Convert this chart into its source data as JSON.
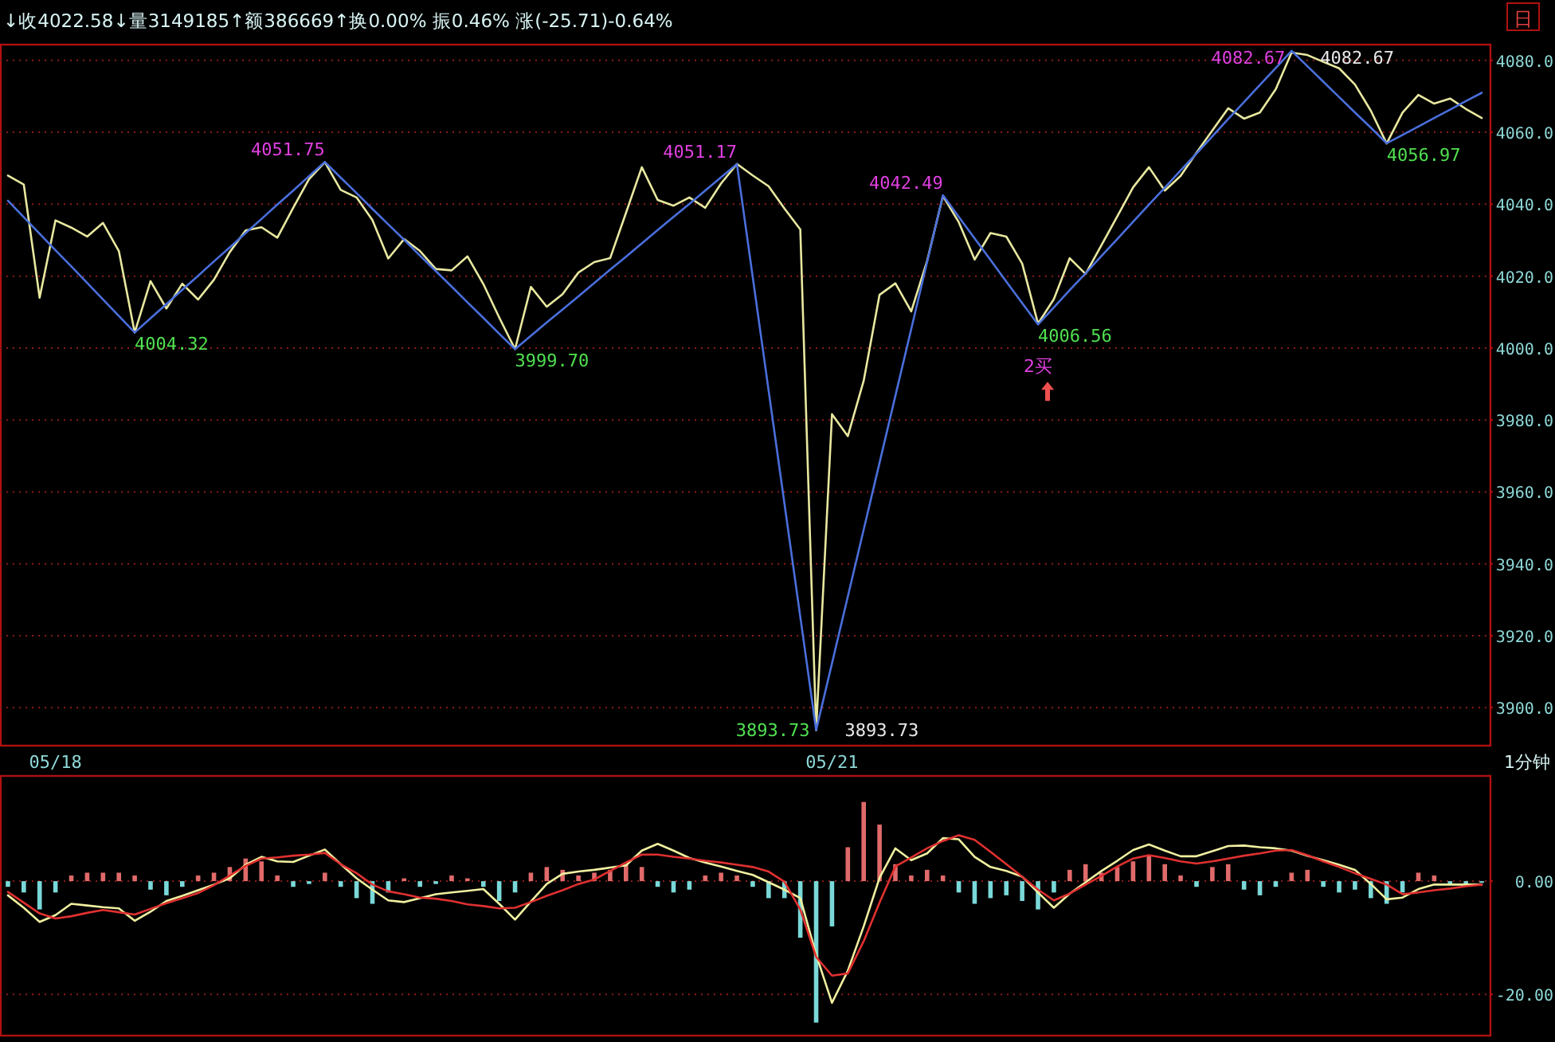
{
  "chart_data": [
    {
      "type": "line",
      "title": "↓收4022.58↓量3149185↑额386669↑换0.00% 振0.46% 涨(-25.71)-0.64%",
      "categories": [
        null,
        null,
        null,
        "05/18",
        null,
        null,
        null,
        null,
        null,
        null,
        null,
        null,
        null,
        null,
        null,
        null,
        null,
        null,
        null,
        null,
        null,
        null,
        null,
        null,
        null,
        null,
        null,
        null,
        null,
        null,
        null,
        null,
        null,
        null,
        null,
        null,
        null,
        null,
        null,
        null,
        null,
        null,
        null,
        null,
        null,
        null,
        null,
        null,
        null,
        null,
        null,
        null,
        "05/21",
        null,
        null,
        null,
        null,
        null,
        null,
        null,
        null,
        null,
        null,
        null,
        null,
        null,
        null,
        null,
        null,
        null,
        null,
        null,
        null,
        null,
        null,
        null,
        null,
        null,
        null,
        null,
        null,
        null,
        null,
        null,
        null,
        null,
        null,
        null,
        null,
        null,
        null,
        null,
        null,
        null
      ],
      "ylim": [
        3889.4,
        4084.4
      ],
      "yticks": [
        {
          "value": 3900,
          "label": "3900.0"
        },
        {
          "value": 3920,
          "label": "3920.0"
        },
        {
          "value": 3940,
          "label": "3940.0"
        },
        {
          "value": 3960,
          "label": "3960.0"
        },
        {
          "value": 3980,
          "label": "3980.0"
        },
        {
          "value": 4000,
          "label": "4000.0"
        },
        {
          "value": 4020,
          "label": "4020.0"
        },
        {
          "value": 4040,
          "label": "4040.0"
        },
        {
          "value": 4060,
          "label": "4060.0"
        },
        {
          "value": 4080,
          "label": "4080.0"
        }
      ],
      "grid": "y",
      "series": [
        {
          "color": "#e8e8a0",
          "values": [
            4048,
            4045.5,
            4014,
            4035.5,
            4033.5,
            4031,
            4034.8,
            4027,
            4004.3,
            4018.6,
            4011,
            4017.9,
            4013.5,
            4019,
            4026.7,
            4032.7,
            4033.6,
            4030.7,
            4039,
            4047,
            4051.7,
            4044,
            4041.9,
            4035.6,
            4024.9,
            4030.3,
            4027,
            4022,
            4021.6,
            4025.5,
            4017.8,
            4008.5,
            3999.7,
            4017,
            4011.5,
            4015,
            4021,
            4023.9,
            4025,
            4037.6,
            4050.3,
            4041.2,
            4039.6,
            4041.9,
            4039,
            4045.8,
            4051.2,
            4048,
            4045,
            4038.8,
            4033,
            3893.7,
            3981.6,
            3975.5,
            3990.9,
            4014.8,
            4018,
            4010.2,
            4024.2,
            4042.3,
            4035,
            4024.6,
            4032,
            4031,
            4023.5,
            4006.8,
            4013.6,
            4025,
            4020.6,
            4028.6,
            4036.6,
            4044.7,
            4050.3,
            4043.8,
            4047.9,
            4054.3,
            4060.5,
            4066.7,
            4063.8,
            4065.5,
            4072,
            4082.2,
            4081.5,
            4079.6,
            4077.8,
            4073.3,
            4066,
            4056.9,
            4065.5,
            4070.4,
            4068,
            4069.4,
            4066.5,
            4064
          ]
        },
        {
          "color": "#4a6fdc",
          "values": [
            4041,
            4036.4,
            4031.8,
            4027.2,
            4022.7,
            4018.1,
            4013.5,
            4008.9,
            4004.32,
            4008.3,
            4012.2,
            4016.2,
            4020.1,
            4024.1,
            4028,
            4032,
            4035.9,
            4039.9,
            4043.8,
            4047.8,
            4051.75,
            4047.4,
            4043.1,
            4038.7,
            4034.4,
            4030.1,
            4025.7,
            4021.4,
            4017.1,
            4012.7,
            4008.4,
            4004,
            3999.7,
            4003.4,
            4007.1,
            4010.7,
            4014.4,
            4018.1,
            4021.8,
            4025.4,
            4029.1,
            4032.8,
            4036.5,
            4040.1,
            4043.8,
            4047.5,
            4051.17,
            4019.7,
            3988.2,
            3956.7,
            3925.2,
            3893.73,
            3912.3,
            3930.9,
            3949.5,
            3968.1,
            3986.7,
            4005.3,
            4023.9,
            4042.49,
            4036.5,
            4030.5,
            4024.5,
            4018.5,
            4012.5,
            4006.56,
            4011.3,
            4016.1,
            4020.8,
            4025.6,
            4030.3,
            4035.1,
            4039.9,
            4044.6,
            4049.4,
            4054.1,
            4058.9,
            4063.7,
            4068.4,
            4073.2,
            4077.9,
            4082.67,
            4078.4,
            4074.1,
            4069.8,
            4065.5,
            4061.3,
            4056.97,
            4059.3,
            4061.6,
            4064,
            4066.3,
            4068.7,
            4071
          ]
        }
      ],
      "annotations": [
        "日",
        "1分钟",
        "4004.32",
        "4051.75",
        "3999.70",
        "4051.17",
        "3893.73",
        "4042.49",
        "4006.56",
        "4082.67",
        "4056.97",
        "3893.73",
        "4082.67",
        "2买"
      ]
    },
    {
      "type": "bar",
      "categories": [
        null,
        null,
        null,
        null,
        null,
        null,
        null,
        null,
        null,
        null,
        null,
        null,
        null,
        null,
        null,
        null,
        null,
        null,
        null,
        null,
        null,
        null,
        null,
        null,
        null,
        null,
        null,
        null,
        null,
        null,
        null,
        null,
        null,
        null,
        null,
        null,
        null,
        null,
        null,
        null,
        null,
        null,
        null,
        null,
        null,
        null,
        null,
        null,
        null,
        null,
        null,
        null,
        null,
        null,
        null,
        null,
        null,
        null,
        null,
        null,
        null,
        null,
        null,
        null,
        null,
        null,
        null,
        null,
        null,
        null,
        null,
        null,
        null,
        null,
        null,
        null,
        null,
        null,
        null,
        null,
        null,
        null,
        null,
        null,
        null,
        null,
        null,
        null,
        null,
        null,
        null,
        null,
        null,
        null
      ],
      "ylim": [
        -27.3,
        18.6
      ],
      "yticks": [
        {
          "value": 0,
          "label": "0.00"
        },
        {
          "value": -20,
          "label": "-20.00"
        }
      ],
      "grid": "y",
      "tick_labels": "y",
      "series": [
        {
          "values": [
            -1,
            -2,
            -5,
            -2,
            1,
            1.5,
            1.5,
            1.5,
            1,
            -1.5,
            -2.5,
            -1,
            1,
            1.5,
            2.5,
            4,
            3.5,
            1,
            -1,
            -0.5,
            1.5,
            -1,
            -3,
            -4,
            -2,
            0.5,
            -1,
            -0.5,
            1,
            0.5,
            -1,
            -3.5,
            -2,
            1.5,
            2.5,
            2,
            1,
            1.5,
            2,
            3,
            2.5,
            -1,
            -2,
            -1.5,
            1,
            1.5,
            1,
            -1,
            -3,
            -3,
            -10,
            -25,
            -8,
            6,
            14,
            10,
            3,
            1,
            2,
            1,
            -2,
            -4,
            -3,
            -2.5,
            -3.5,
            -5,
            -2,
            2,
            3,
            1.5,
            2.5,
            3.5,
            4.5,
            3,
            1,
            -1,
            2.5,
            3,
            -1.5,
            -2.5,
            -1,
            1.5,
            2,
            -1,
            -2,
            -1.5,
            -3,
            -4,
            -2,
            1.5,
            1,
            -0.5,
            -0.5,
            -0.3
          ],
          "colors": [
            "#7ad8d8",
            "#7ad8d8",
            "#7ad8d8",
            "#7ad8d8",
            "#e06a6a",
            "#e06a6a",
            "#e06a6a",
            "#e06a6a",
            "#e06a6a",
            "#7ad8d8",
            "#7ad8d8",
            "#7ad8d8",
            "#e06a6a",
            "#e06a6a",
            "#e06a6a",
            "#e06a6a",
            "#e06a6a",
            "#e06a6a",
            "#7ad8d8",
            "#7ad8d8",
            "#e06a6a",
            "#7ad8d8",
            "#7ad8d8",
            "#7ad8d8",
            "#7ad8d8",
            "#e06a6a",
            "#7ad8d8",
            "#7ad8d8",
            "#e06a6a",
            "#e06a6a",
            "#7ad8d8",
            "#7ad8d8",
            "#7ad8d8",
            "#e06a6a",
            "#e06a6a",
            "#e06a6a",
            "#e06a6a",
            "#e06a6a",
            "#e06a6a",
            "#e06a6a",
            "#e06a6a",
            "#7ad8d8",
            "#7ad8d8",
            "#7ad8d8",
            "#e06a6a",
            "#e06a6a",
            "#e06a6a",
            "#7ad8d8",
            "#7ad8d8",
            "#7ad8d8",
            "#7ad8d8",
            "#7ad8d8",
            "#7ad8d8",
            "#e06a6a",
            "#e06a6a",
            "#e06a6a",
            "#e06a6a",
            "#e06a6a",
            "#e06a6a",
            "#e06a6a",
            "#7ad8d8",
            "#7ad8d8",
            "#7ad8d8",
            "#7ad8d8",
            "#7ad8d8",
            "#7ad8d8",
            "#7ad8d8",
            "#e06a6a",
            "#e06a6a",
            "#e06a6a",
            "#e06a6a",
            "#e06a6a",
            "#e06a6a",
            "#e06a6a",
            "#e06a6a",
            "#7ad8d8",
            "#e06a6a",
            "#e06a6a",
            "#7ad8d8",
            "#7ad8d8",
            "#7ad8d8",
            "#e06a6a",
            "#e06a6a",
            "#7ad8d8",
            "#7ad8d8",
            "#7ad8d8",
            "#7ad8d8",
            "#7ad8d8",
            "#7ad8d8",
            "#e06a6a",
            "#e06a6a",
            "#7ad8d8",
            "#7ad8d8",
            "#7ad8d8"
          ]
        },
        {
          "type": "line",
          "color": "#f0f0a0",
          "values": [
            -2.5,
            -4.7,
            -7.2,
            -6,
            -4,
            -4.3,
            -4.6,
            -4.8,
            -7,
            -5.4,
            -3.5,
            -2.6,
            -1.6,
            -0.6,
            0.5,
            2.9,
            4.3,
            3.5,
            3.4,
            4.5,
            5.6,
            3,
            0.5,
            -1.5,
            -3.4,
            -3.7,
            -3,
            -2.3,
            -2,
            -1.7,
            -1.4,
            -4,
            -6.8,
            -3.6,
            -0.5,
            1.3,
            1.7,
            2,
            2.4,
            2.8,
            5.4,
            6.6,
            5.4,
            4.1,
            3.3,
            2.6,
            1.8,
            1.1,
            -0.2,
            -1.5,
            -3,
            -13,
            -21.5,
            -15.8,
            -8,
            0.6,
            5.8,
            3.7,
            4.9,
            7.6,
            7.4,
            4.3,
            2.5,
            1.8,
            0.8,
            -2,
            -4.7,
            -2.2,
            -0.2,
            1.8,
            3.6,
            5.5,
            6.5,
            5.4,
            4.4,
            4.4,
            5.3,
            6.2,
            6.3,
            6,
            5.8,
            5.4,
            4.5,
            3.7,
            2.9,
            2,
            -0.5,
            -3.2,
            -2.9,
            -1.4,
            -0.6,
            -0.6,
            -0.6,
            -0.6
          ]
        },
        {
          "type": "line",
          "color": "#e03030",
          "values": [
            -1.9,
            -3.8,
            -5.7,
            -6.6,
            -6.2,
            -5.6,
            -5.1,
            -5.5,
            -5.9,
            -4.9,
            -3.9,
            -3,
            -2.1,
            -0.7,
            1,
            2.7,
            4,
            4.2,
            4.5,
            4.7,
            5,
            3,
            1.4,
            -0.6,
            -1.8,
            -2.3,
            -2.9,
            -3.1,
            -3.5,
            -4.1,
            -4.4,
            -4.8,
            -4.7,
            -3.7,
            -2.6,
            -1.6,
            -0.5,
            0.3,
            1.8,
            3.3,
            4.7,
            4.7,
            4.3,
            4,
            3.6,
            3.3,
            2.9,
            2.5,
            1.7,
            -0.1,
            -5,
            -13.4,
            -16.7,
            -16.3,
            -10.6,
            -3.8,
            2.6,
            4.2,
            5.8,
            7.1,
            8.1,
            7.3,
            5.2,
            3,
            0.8,
            -1.5,
            -3.4,
            -2.2,
            -0.6,
            0.9,
            2.6,
            4,
            4.6,
            4.1,
            3.5,
            3.1,
            3.5,
            4,
            4.5,
            4.9,
            5.4,
            5.5,
            4.6,
            3.5,
            2.5,
            1.4,
            0.4,
            -0.6,
            -2.3,
            -2,
            -1.6,
            -1.3,
            -0.9,
            -0.6
          ]
        }
      ]
    }
  ]
}
